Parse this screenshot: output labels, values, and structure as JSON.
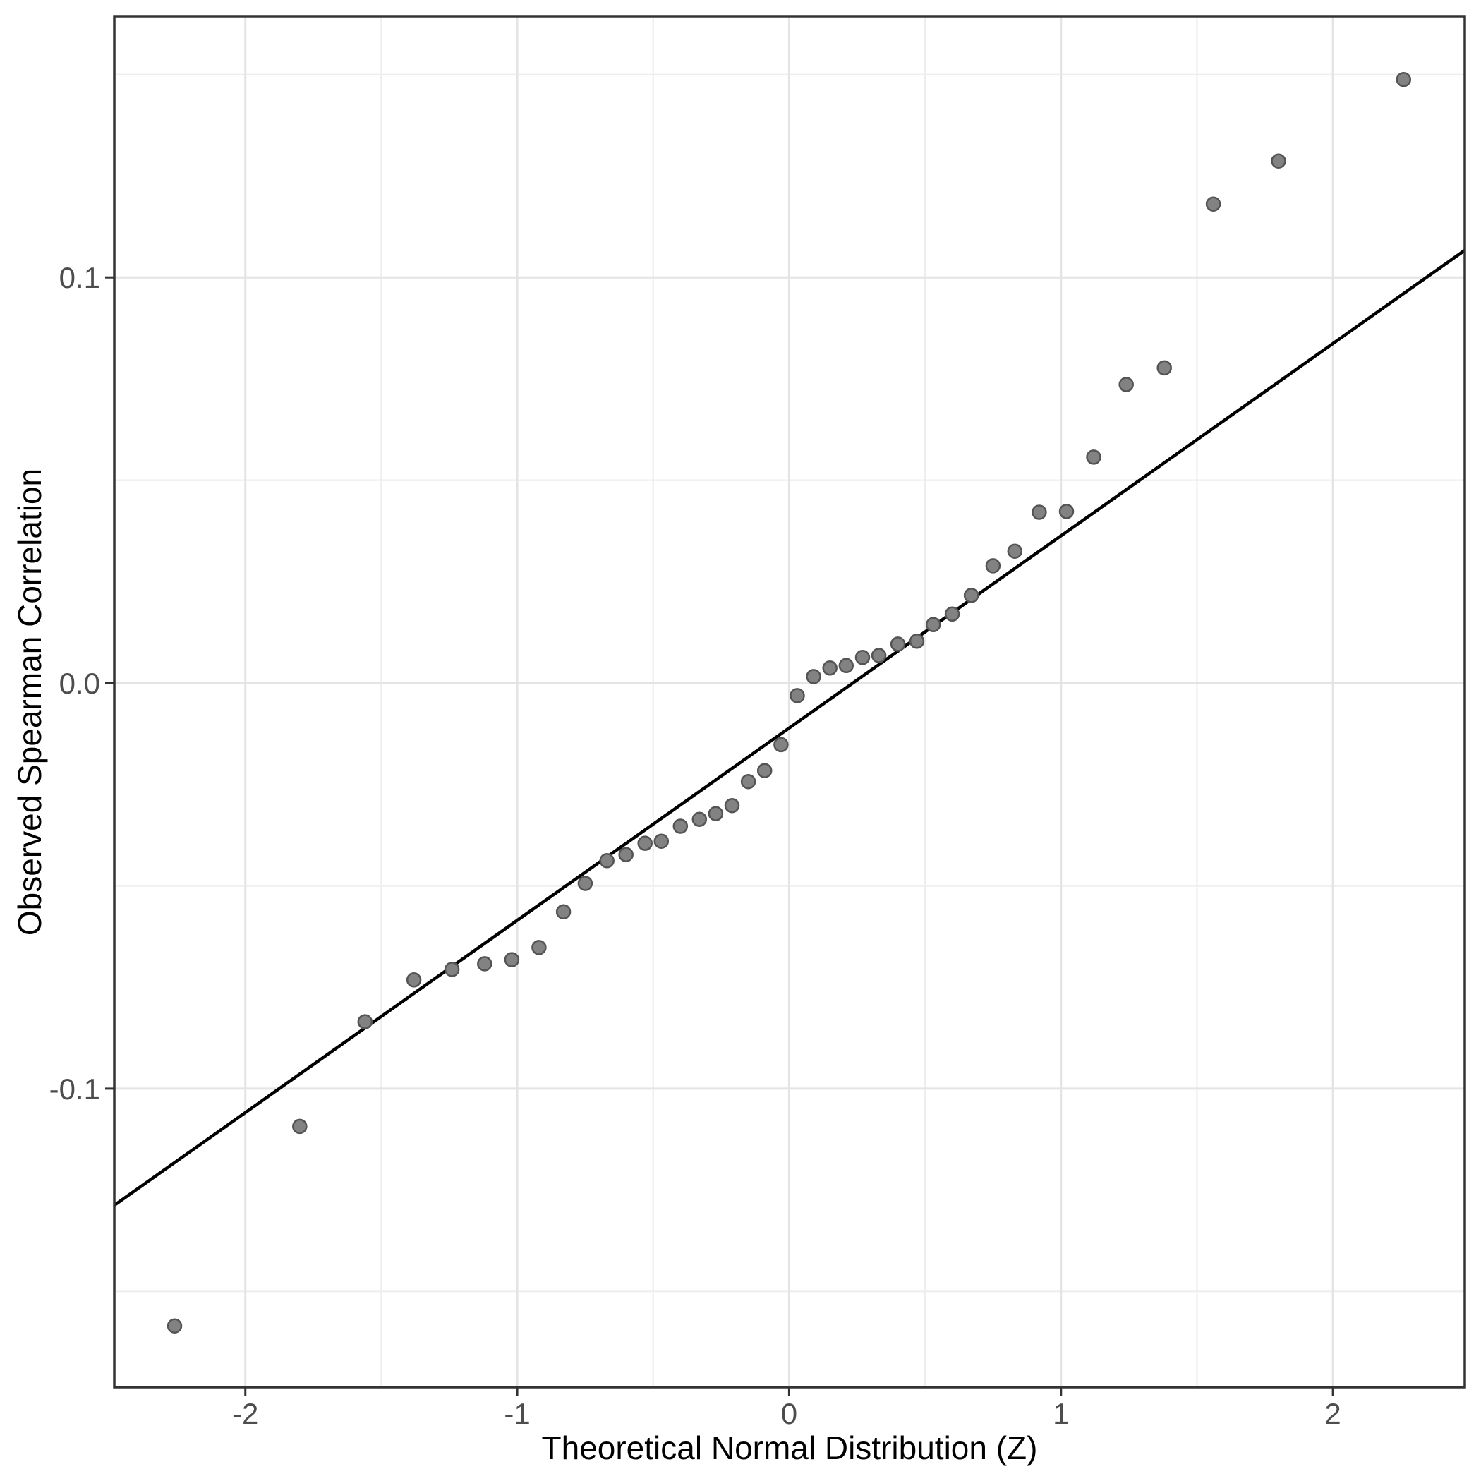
{
  "chart_data": {
    "type": "scatter",
    "title": "",
    "xlabel": "Theoretical Normal Distribution (Z)",
    "ylabel": "Observed Spearman Correlation",
    "xlim": [
      -2.482,
      2.485
    ],
    "ylim": [
      -0.1736,
      0.1644
    ],
    "grid": "on",
    "legend": "none",
    "x_major_ticks": [
      -2,
      -1,
      0,
      1,
      2
    ],
    "x_major_tick_labels": [
      "-2",
      "-1",
      "0",
      "1",
      "2"
    ],
    "x_minor_ticks": [
      -1.5,
      -0.5,
      0.5,
      1.5
    ],
    "y_major_ticks": [
      0.1,
      0.0,
      -0.1
    ],
    "y_major_tick_labels": [
      "0.1",
      "0.0",
      "-0.1"
    ],
    "y_minor_ticks": [
      0.15,
      0.05,
      -0.05,
      -0.15
    ],
    "points": [
      [
        -2.26,
        -0.1585
      ],
      [
        -1.8,
        -0.1093
      ],
      [
        -1.56,
        -0.0835
      ],
      [
        -1.38,
        -0.0732
      ],
      [
        -1.24,
        -0.0706
      ],
      [
        -1.12,
        -0.0692
      ],
      [
        -1.02,
        -0.0682
      ],
      [
        -0.92,
        -0.0652
      ],
      [
        -0.83,
        -0.0564
      ],
      [
        -0.75,
        -0.0494
      ],
      [
        -0.67,
        -0.0438
      ],
      [
        -0.6,
        -0.0423
      ],
      [
        -0.53,
        -0.0395
      ],
      [
        -0.47,
        -0.039
      ],
      [
        -0.4,
        -0.0353
      ],
      [
        -0.33,
        -0.0336
      ],
      [
        -0.27,
        -0.0322
      ],
      [
        -0.21,
        -0.0302
      ],
      [
        -0.15,
        -0.0243
      ],
      [
        -0.09,
        -0.0216
      ],
      [
        -0.03,
        -0.0152
      ],
      [
        0.03,
        -0.0031
      ],
      [
        0.09,
        0.0016
      ],
      [
        0.15,
        0.0037
      ],
      [
        0.21,
        0.0043
      ],
      [
        0.27,
        0.0063
      ],
      [
        0.33,
        0.0068
      ],
      [
        0.4,
        0.0096
      ],
      [
        0.47,
        0.0103
      ],
      [
        0.53,
        0.0144
      ],
      [
        0.6,
        0.017
      ],
      [
        0.67,
        0.0216
      ],
      [
        0.75,
        0.0289
      ],
      [
        0.83,
        0.0325
      ],
      [
        0.92,
        0.0421
      ],
      [
        1.02,
        0.0423
      ],
      [
        1.12,
        0.0557
      ],
      [
        1.24,
        0.0736
      ],
      [
        1.38,
        0.0777
      ],
      [
        1.56,
        0.1181
      ],
      [
        1.8,
        0.1287
      ],
      [
        2.26,
        0.1488
      ]
    ],
    "ref_line": {
      "intercept": -0.0111,
      "slope": 0.0474
    },
    "layout": {
      "panel_left": 162,
      "panel_top": 23,
      "panel_right": 2076,
      "panel_bottom": 1966,
      "tick_length": 13,
      "x_tick_label_baseline_y": 2018,
      "y_tick_label_right_x": 142,
      "x_title_center": [
        1119,
        2052
      ],
      "y_title_center": [
        42,
        995
      ]
    },
    "colors": {
      "background": "#ffffff",
      "panel_background": "#ffffff",
      "grid_major": "#e4e4e4",
      "grid_minor": "#eeeeee",
      "panel_border": "#333333",
      "tick_mark": "#333333",
      "tick_label": "#4d4d4d",
      "axis_title": "#000000",
      "point_fill": "#828282",
      "point_stroke": "#545454",
      "ref_line": "#000000"
    },
    "point_radius": 9.5,
    "point_stroke_width": 2.5,
    "ref_line_width": 4.5,
    "grid_major_width": 3,
    "grid_minor_width": 2.2,
    "border_width": 3.5
  }
}
